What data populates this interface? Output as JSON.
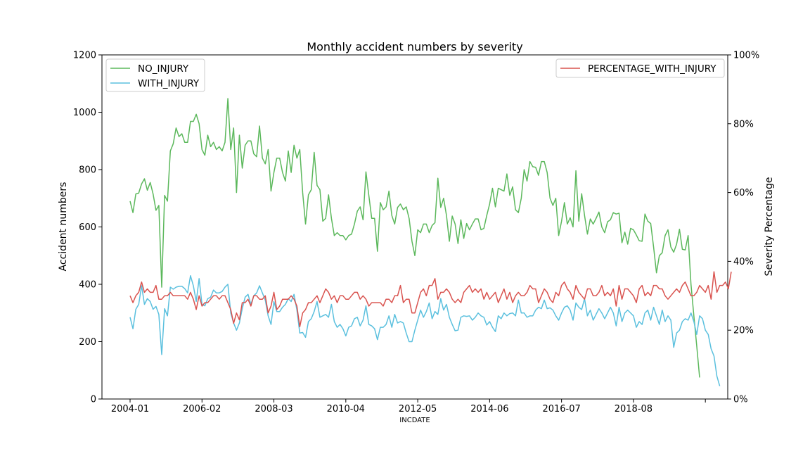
{
  "chart_data": {
    "type": "line",
    "title": "Monthly accident numbers by severity",
    "xlabel": "INCDATE",
    "ylabel": "Accident numbers",
    "y2label": "Severity Percentage",
    "ylim": [
      0,
      1200
    ],
    "y2lim": [
      0,
      100
    ],
    "yticks": [
      "0",
      "200",
      "400",
      "600",
      "800",
      "1000",
      "1200"
    ],
    "y2ticks": [
      "0%",
      "20%",
      "40%",
      "60%",
      "80%",
      "100%"
    ],
    "xticks": [
      "2004-01",
      "2006-02",
      "2008-03",
      "2010-04",
      "2012-05",
      "2014-06",
      "2016-07",
      "2018-08",
      ""
    ],
    "x_start": "2004-01",
    "legend_left_position": "upper left",
    "legend_right_position": "upper right",
    "grid": false,
    "series": [
      {
        "name": "NO_INJURY",
        "axis": "left",
        "color": "#5cb85c",
        "values": [
          690,
          650,
          715,
          718,
          750,
          768,
          728,
          755,
          715,
          658,
          675,
          390,
          710,
          690,
          865,
          890,
          945,
          915,
          925,
          895,
          895,
          968,
          968,
          993,
          960,
          870,
          850,
          920,
          880,
          895,
          870,
          880,
          865,
          895,
          1048,
          870,
          945,
          720,
          920,
          805,
          885,
          900,
          900,
          855,
          845,
          952,
          840,
          820,
          870,
          725,
          790,
          840,
          840,
          790,
          760,
          865,
          790,
          885,
          840,
          870,
          720,
          610,
          712,
          730,
          860,
          745,
          730,
          620,
          630,
          712,
          630,
          570,
          580,
          570,
          570,
          555,
          570,
          575,
          610,
          655,
          670,
          625,
          792,
          710,
          630,
          630,
          515,
          685,
          660,
          670,
          725,
          640,
          610,
          668,
          680,
          660,
          670,
          630,
          550,
          500,
          590,
          580,
          610,
          610,
          580,
          605,
          615,
          770,
          668,
          700,
          640,
          550,
          638,
          610,
          542,
          625,
          560,
          612,
          590,
          610,
          628,
          628,
          590,
          595,
          640,
          680,
          735,
          670,
          735,
          730,
          725,
          785,
          710,
          740,
          660,
          650,
          700,
          800,
          760,
          828,
          810,
          808,
          780,
          828,
          828,
          790,
          700,
          675,
          700,
          570,
          620,
          685,
          610,
          632,
          600,
          796,
          620,
          716,
          640,
          575,
          628,
          610,
          630,
          652,
          600,
          580,
          618,
          625,
          650,
          645,
          648,
          545,
          582,
          540,
          595,
          590,
          572,
          552,
          550,
          645,
          620,
          612,
          530,
          440,
          500,
          510,
          570,
          590,
          530,
          512,
          540,
          592,
          522,
          520,
          570,
          400,
          290,
          185,
          75
        ]
      },
      {
        "name": "WITH_INJURY",
        "axis": "left",
        "color": "#5bc0de",
        "values": [
          285,
          245,
          313,
          330,
          395,
          330,
          350,
          340,
          313,
          323,
          295,
          155,
          315,
          290,
          390,
          383,
          390,
          393,
          393,
          385,
          370,
          430,
          395,
          340,
          420,
          330,
          325,
          350,
          355,
          380,
          370,
          370,
          375,
          390,
          400,
          300,
          265,
          240,
          265,
          315,
          355,
          365,
          330,
          360,
          370,
          395,
          370,
          345,
          290,
          260,
          340,
          305,
          305,
          320,
          330,
          350,
          340,
          365,
          310,
          230,
          232,
          215,
          270,
          280,
          305,
          340,
          285,
          290,
          295,
          285,
          330,
          270,
          250,
          260,
          245,
          220,
          250,
          255,
          280,
          285,
          255,
          275,
          325,
          260,
          255,
          245,
          207,
          250,
          250,
          260,
          290,
          250,
          295,
          265,
          270,
          265,
          230,
          200,
          200,
          240,
          275,
          310,
          285,
          305,
          335,
          280,
          305,
          295,
          350,
          310,
          330,
          285,
          260,
          238,
          240,
          285,
          290,
          288,
          290,
          275,
          285,
          300,
          290,
          285,
          258,
          270,
          250,
          235,
          290,
          280,
          300,
          290,
          298,
          300,
          290,
          345,
          300,
          300,
          285,
          290,
          290,
          310,
          320,
          315,
          345,
          315,
          318,
          310,
          290,
          275,
          300,
          320,
          325,
          310,
          275,
          335,
          320,
          312,
          350,
          290,
          310,
          275,
          295,
          315,
          300,
          280,
          300,
          320,
          300,
          255,
          320,
          270,
          300,
          310,
          300,
          290,
          250,
          270,
          260,
          300,
          310,
          275,
          320,
          290,
          260,
          310,
          270,
          290,
          275,
          180,
          230,
          240,
          270,
          280,
          275,
          300,
          270,
          225,
          290,
          280,
          240,
          225,
          175,
          150,
          80,
          45
        ]
      },
      {
        "name": "PERCENTAGE_WITH_INJURY",
        "axis": "right",
        "color": "#d9534f",
        "values": [
          30,
          28,
          30,
          31,
          34,
          31,
          32,
          31,
          31,
          33,
          29,
          29,
          30,
          30,
          31,
          30,
          30,
          30,
          30,
          30,
          29,
          31,
          29,
          26,
          30,
          27,
          28,
          28,
          29,
          30,
          30,
          29,
          30,
          30,
          28,
          26,
          22,
          25,
          23,
          28,
          28,
          29,
          27,
          30,
          30,
          29,
          29,
          30,
          25,
          27,
          31,
          26,
          27,
          29,
          29,
          29,
          30,
          29,
          27,
          21,
          25,
          26,
          28,
          28,
          29,
          30,
          28,
          30,
          32,
          31,
          29,
          30,
          28,
          30,
          30,
          29,
          29,
          30,
          31,
          31,
          29,
          30,
          29,
          27,
          28,
          28,
          28,
          28,
          27,
          29,
          29,
          28,
          30,
          30,
          33,
          28,
          29,
          29,
          25,
          25,
          28,
          31,
          32,
          30,
          33,
          33,
          35,
          29,
          31,
          31,
          32,
          31,
          29,
          28,
          29,
          28,
          31,
          32,
          33,
          31,
          32,
          31,
          32,
          29,
          31,
          29,
          30,
          31,
          28,
          30,
          32,
          29,
          31,
          28,
          30,
          31,
          30,
          30,
          31,
          33,
          32,
          32,
          28,
          30,
          32,
          31,
          29,
          28,
          31,
          30,
          33,
          34,
          32,
          31,
          29,
          33,
          31,
          30,
          29,
          32,
          32,
          30,
          30,
          31,
          33,
          30,
          31,
          30,
          32,
          27,
          33,
          29,
          32,
          32,
          31,
          30,
          28,
          32,
          33,
          30,
          31,
          30,
          33,
          33,
          32,
          32,
          30,
          29,
          30,
          31,
          32,
          31,
          33,
          34,
          32,
          30,
          30,
          31,
          33,
          32,
          31,
          33,
          29,
          37,
          31,
          33,
          33,
          34,
          32,
          37
        ]
      }
    ]
  }
}
